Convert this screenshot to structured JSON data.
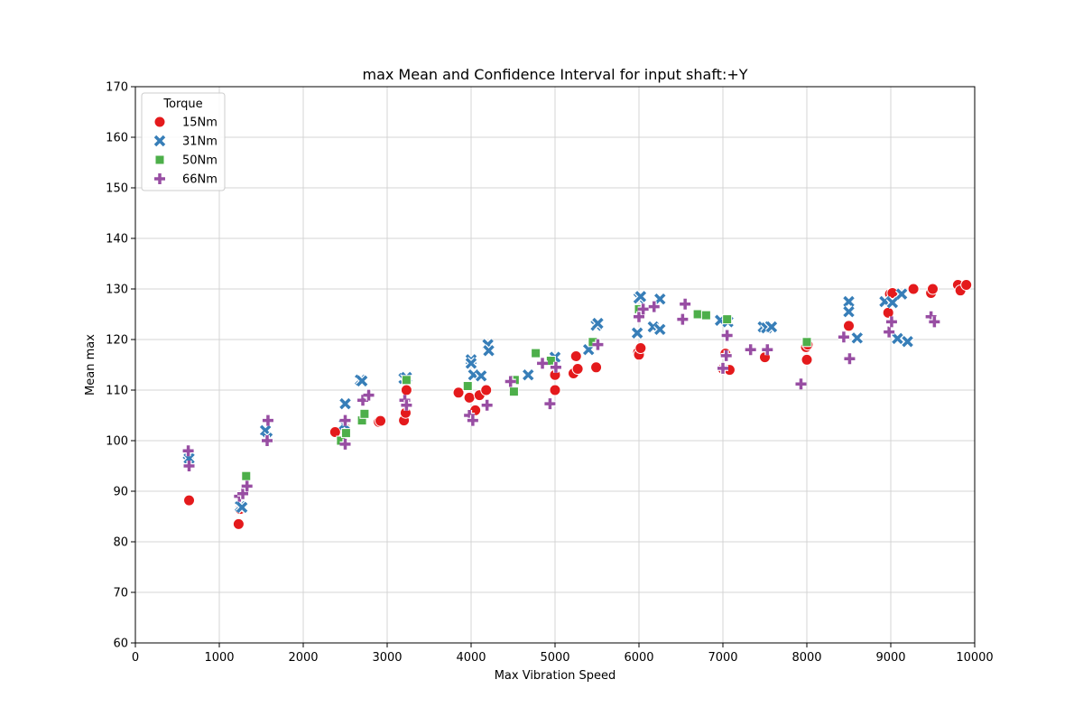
{
  "chart_data": {
    "type": "scatter",
    "title": "max Mean and Confidence Interval for input shaft:+Y",
    "xlabel": "Max Vibration Speed",
    "ylabel": "Mean max",
    "xlim": [
      0,
      10000
    ],
    "ylim": [
      60,
      170
    ],
    "xticks": [
      0,
      1000,
      2000,
      3000,
      4000,
      5000,
      6000,
      7000,
      8000,
      9000,
      10000
    ],
    "yticks": [
      60,
      70,
      80,
      90,
      100,
      110,
      120,
      130,
      140,
      150,
      160,
      170
    ],
    "grid": true,
    "legend": {
      "title": "Torque",
      "position": "top-left"
    },
    "series": [
      {
        "name": "15Nm",
        "color": "#e41a1c",
        "marker": "circle",
        "points": [
          [
            640,
            88.2
          ],
          [
            1230,
            83.5
          ],
          [
            1250,
            86.5
          ],
          [
            2380,
            101.7
          ],
          [
            2500,
            102.5
          ],
          [
            2900,
            103.7
          ],
          [
            2920,
            103.9
          ],
          [
            3200,
            104.0
          ],
          [
            3220,
            105.5
          ],
          [
            3230,
            110.0
          ],
          [
            3850,
            109.5
          ],
          [
            3980,
            108.5
          ],
          [
            4050,
            106.0
          ],
          [
            4100,
            109.0
          ],
          [
            4180,
            110.0
          ],
          [
            5000,
            113.0
          ],
          [
            5000,
            110.0
          ],
          [
            5220,
            113.3
          ],
          [
            5250,
            116.7
          ],
          [
            5270,
            114.2
          ],
          [
            5490,
            114.5
          ],
          [
            5990,
            117.5
          ],
          [
            6000,
            117.0
          ],
          [
            6020,
            118.3
          ],
          [
            7000,
            114.2
          ],
          [
            7030,
            117.2
          ],
          [
            7080,
            114.0
          ],
          [
            7500,
            116.5
          ],
          [
            7990,
            118.5
          ],
          [
            8000,
            116.0
          ],
          [
            8010,
            119.0
          ],
          [
            8500,
            122.7
          ],
          [
            8970,
            125.3
          ],
          [
            8990,
            129.0
          ],
          [
            9020,
            129.2
          ],
          [
            9270,
            130.0
          ],
          [
            9480,
            129.2
          ],
          [
            9500,
            130.0
          ],
          [
            9800,
            130.8
          ],
          [
            9830,
            129.7
          ],
          [
            9900,
            130.8
          ]
        ]
      },
      {
        "name": "31Nm",
        "color": "#377eb8",
        "marker": "x",
        "points": [
          [
            630,
            97.3
          ],
          [
            640,
            96.5
          ],
          [
            1250,
            87.0
          ],
          [
            1270,
            86.8
          ],
          [
            1550,
            102.0
          ],
          [
            1570,
            100.5
          ],
          [
            2490,
            103.2
          ],
          [
            2500,
            107.3
          ],
          [
            2680,
            112.0
          ],
          [
            2700,
            111.8
          ],
          [
            3200,
            112.3
          ],
          [
            3230,
            112.5
          ],
          [
            4000,
            116.0
          ],
          [
            4000,
            115.3
          ],
          [
            4030,
            113.0
          ],
          [
            4120,
            112.8
          ],
          [
            4200,
            119.0
          ],
          [
            4210,
            117.8
          ],
          [
            4680,
            113.0
          ],
          [
            5000,
            116.5
          ],
          [
            5400,
            118.0
          ],
          [
            5490,
            122.8
          ],
          [
            5510,
            123.2
          ],
          [
            5980,
            121.3
          ],
          [
            6000,
            128.2
          ],
          [
            6020,
            128.5
          ],
          [
            6170,
            122.5
          ],
          [
            6250,
            128.0
          ],
          [
            6250,
            122.0
          ],
          [
            6970,
            123.8
          ],
          [
            7060,
            123.5
          ],
          [
            7480,
            122.5
          ],
          [
            7520,
            122.3
          ],
          [
            7580,
            122.5
          ],
          [
            8500,
            127.5
          ],
          [
            8500,
            125.5
          ],
          [
            8600,
            120.3
          ],
          [
            8930,
            127.5
          ],
          [
            9020,
            127.3
          ],
          [
            9080,
            120.2
          ],
          [
            9130,
            129.0
          ],
          [
            9200,
            119.6
          ]
        ]
      },
      {
        "name": "50Nm",
        "color": "#4daf4a",
        "marker": "square",
        "points": [
          [
            1320,
            93.0
          ],
          [
            2450,
            100.0
          ],
          [
            2510,
            101.5
          ],
          [
            2700,
            104.0
          ],
          [
            2730,
            105.3
          ],
          [
            3230,
            112.0
          ],
          [
            3960,
            110.8
          ],
          [
            4520,
            112.0
          ],
          [
            4510,
            109.7
          ],
          [
            4770,
            117.3
          ],
          [
            4950,
            115.8
          ],
          [
            5450,
            119.5
          ],
          [
            6000,
            126.0
          ],
          [
            6700,
            125.0
          ],
          [
            6800,
            124.8
          ],
          [
            7050,
            124.0
          ],
          [
            8000,
            119.5
          ]
        ]
      },
      {
        "name": "66Nm",
        "color": "#984ea3",
        "marker": "plus",
        "points": [
          [
            630,
            98.0
          ],
          [
            640,
            95.0
          ],
          [
            1240,
            89.0
          ],
          [
            1280,
            89.5
          ],
          [
            1330,
            91.0
          ],
          [
            1580,
            104.0
          ],
          [
            1570,
            100.0
          ],
          [
            2500,
            104.0
          ],
          [
            2500,
            99.3
          ],
          [
            2710,
            108.0
          ],
          [
            2780,
            109.0
          ],
          [
            3210,
            108.0
          ],
          [
            3230,
            107.0
          ],
          [
            3980,
            105.0
          ],
          [
            4020,
            104.0
          ],
          [
            4190,
            107.0
          ],
          [
            4470,
            111.7
          ],
          [
            4850,
            115.3
          ],
          [
            4940,
            107.3
          ],
          [
            5010,
            114.5
          ],
          [
            5510,
            119.0
          ],
          [
            6000,
            124.5
          ],
          [
            6050,
            126.0
          ],
          [
            6180,
            126.5
          ],
          [
            6520,
            124.0
          ],
          [
            6550,
            127.0
          ],
          [
            7000,
            114.3
          ],
          [
            7050,
            120.8
          ],
          [
            7040,
            116.8
          ],
          [
            7330,
            118.0
          ],
          [
            7530,
            118.0
          ],
          [
            7930,
            111.2
          ],
          [
            8440,
            120.5
          ],
          [
            8510,
            116.2
          ],
          [
            8980,
            121.5
          ],
          [
            9010,
            123.5
          ],
          [
            9480,
            124.5
          ],
          [
            9520,
            123.5
          ]
        ]
      }
    ]
  }
}
